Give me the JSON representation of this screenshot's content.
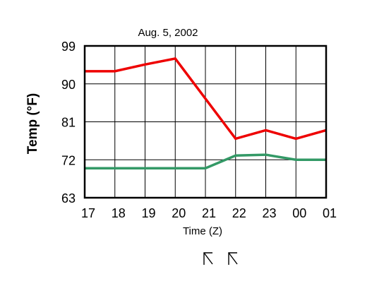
{
  "chart_data": {
    "type": "line",
    "title": "Aug. 5, 2002",
    "xlabel": "Time (Z)",
    "ylabel": "Temp (°F)",
    "categories": [
      "17",
      "18",
      "19",
      "20",
      "21",
      "22",
      "23",
      "00",
      "01"
    ],
    "yticks": [
      63,
      72,
      81,
      90,
      99
    ],
    "ylim": [
      63,
      99
    ],
    "grid": true,
    "legend": "none",
    "series": [
      {
        "color": "#ee0000",
        "values": [
          93,
          93,
          94.6,
          96,
          86.5,
          77,
          79,
          77,
          79
        ]
      },
      {
        "color": "#339966",
        "values": [
          70,
          70,
          70,
          70,
          70,
          73,
          73.2,
          72,
          72
        ]
      }
    ]
  },
  "nav": {
    "icons": [
      "corner-arrow-icon",
      "corner-arrow-icon"
    ]
  }
}
